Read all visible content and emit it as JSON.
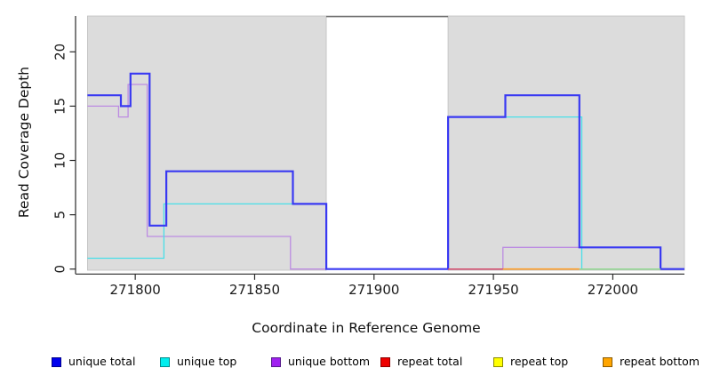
{
  "chart_data": {
    "type": "line",
    "subtype": "step-coverage-plot",
    "title": "",
    "xlabel": "Coordinate in Reference Genome",
    "ylabel": "Read Coverage Depth",
    "xlim": [
      271775,
      272030
    ],
    "ylim": [
      0,
      23.3
    ],
    "xticks": [
      271800,
      271850,
      271900,
      271950,
      272000
    ],
    "yticks": [
      0,
      5,
      10,
      15,
      20
    ],
    "grid": false,
    "plot_background_color": "#DCDCDC",
    "plot_background_border": "#BFBFBF",
    "covered_regions": [
      [
        271780,
        271880
      ],
      [
        271931,
        272030
      ]
    ],
    "uncovered_gap": [
      271880,
      271931
    ],
    "gap_top_line_color": "#6F6F6F",
    "axis_color": "#2A2A2A",
    "tick_label_color": "#1A1A1A",
    "series": [
      {
        "name": "unique total",
        "draw_order": 3,
        "line_color": "#3939F2",
        "line_width": 2.2,
        "end_x": 272030,
        "steps": [
          [
            271780,
            16
          ],
          [
            271794,
            15
          ],
          [
            271798,
            18
          ],
          [
            271806,
            4
          ],
          [
            271813,
            9
          ],
          [
            271866,
            6
          ],
          [
            271880,
            0
          ],
          [
            271931,
            14
          ],
          [
            271955,
            16
          ],
          [
            271986,
            2
          ],
          [
            272020,
            0
          ]
        ]
      },
      {
        "name": "unique top",
        "draw_order": 2,
        "line_color": "#49DFE8",
        "line_width": 1.3,
        "end_x": 272030,
        "steps": [
          [
            271780,
            1
          ],
          [
            271812,
            6
          ],
          [
            271880,
            0
          ],
          [
            271931,
            14
          ],
          [
            271987,
            0
          ]
        ]
      },
      {
        "name": "unique bottom",
        "draw_order": 1,
        "line_color": "#BC8BE2",
        "line_width": 1.3,
        "end_x": 272030,
        "steps": [
          [
            271780,
            15
          ],
          [
            271793,
            14
          ],
          [
            271797,
            17
          ],
          [
            271805,
            3
          ],
          [
            271865,
            0
          ],
          [
            271954,
            2
          ],
          [
            272020,
            0
          ]
        ]
      },
      {
        "name": "repeat total",
        "draw_order": 4,
        "line_color": "#D4496B",
        "line_width": 1.5,
        "end_x": 271955,
        "steps": [
          [
            271931,
            0
          ]
        ]
      },
      {
        "name": "repeat top",
        "draw_order": 5,
        "line_color": "#8FD98F",
        "line_width": 1.5,
        "end_x": 272020,
        "steps": [
          [
            271986,
            0
          ]
        ]
      },
      {
        "name": "repeat bottom",
        "draw_order": 6,
        "line_color": "#FF9D26",
        "line_width": 1.6,
        "end_x": 271986,
        "steps": [
          [
            271780,
            0
          ],
          [
            271880,
            null
          ],
          [
            271954,
            0
          ]
        ]
      }
    ],
    "legend": {
      "position": "bottom",
      "items": [
        {
          "label": "unique total",
          "swatch_fill": "#0000EE",
          "swatch_border": "#00008B"
        },
        {
          "label": "unique top",
          "swatch_fill": "#00EEEE",
          "swatch_border": "#008B8B"
        },
        {
          "label": "unique bottom",
          "swatch_fill": "#A020F0",
          "swatch_border": "#551A8B"
        },
        {
          "label": "repeat total",
          "swatch_fill": "#EE0000",
          "swatch_border": "#8B0000"
        },
        {
          "label": "repeat top",
          "swatch_fill": "#FFFF00",
          "swatch_border": "#8B8B00"
        },
        {
          "label": "repeat bottom",
          "swatch_fill": "#FFA500",
          "swatch_border": "#8B5A00"
        }
      ]
    }
  }
}
